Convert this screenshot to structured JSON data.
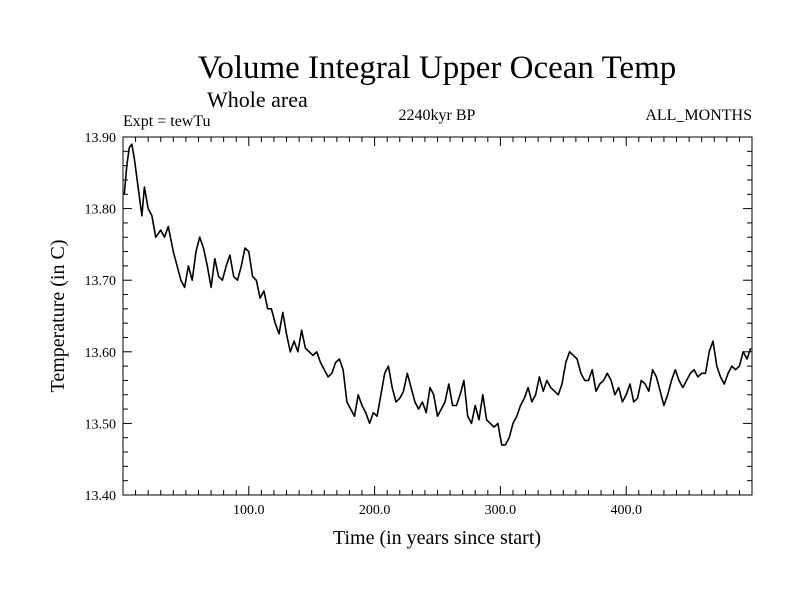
{
  "chart_data": {
    "type": "line",
    "title": "Volume Integral Upper Ocean Temp",
    "subtitle": "Whole area",
    "expt_label": "Expt = tewTu",
    "period_label": "2240kyr BP",
    "months_label": "ALL_MONTHS",
    "xlabel": "Time (in years since start)",
    "ylabel": "Temperature (in C)",
    "xlim": [
      0,
      500
    ],
    "ylim": [
      13.4,
      13.9
    ],
    "grid": false,
    "x_ticks": [
      100,
      200,
      300,
      400
    ],
    "x_tick_labels": [
      "100.0",
      "200.0",
      "300.0",
      "400.0"
    ],
    "y_ticks": [
      13.4,
      13.5,
      13.6,
      13.7,
      13.8,
      13.9
    ],
    "y_tick_labels": [
      "13.40",
      "13.50",
      "13.60",
      "13.70",
      "13.80",
      "13.90"
    ],
    "series": [
      {
        "name": "Volume integral upper ocean temperature",
        "x": [
          1,
          3,
          5,
          7,
          9,
          12,
          15,
          17,
          20,
          23,
          26,
          30,
          33,
          36,
          40,
          43,
          46,
          49,
          52,
          55,
          58,
          61,
          64,
          67,
          70,
          73,
          76,
          79,
          82,
          85,
          88,
          91,
          94,
          97,
          100,
          103,
          106,
          109,
          112,
          115,
          118,
          121,
          124,
          127,
          130,
          133,
          136,
          139,
          142,
          145,
          148,
          151,
          154,
          157,
          160,
          163,
          166,
          169,
          172,
          175,
          178,
          181,
          184,
          187,
          190,
          193,
          196,
          199,
          202,
          205,
          208,
          211,
          214,
          217,
          220,
          223,
          226,
          229,
          232,
          235,
          238,
          241,
          244,
          247,
          250,
          253,
          256,
          259,
          262,
          265,
          268,
          271,
          274,
          277,
          280,
          283,
          286,
          289,
          292,
          295,
          298,
          301,
          304,
          307,
          310,
          313,
          316,
          319,
          322,
          325,
          328,
          331,
          334,
          337,
          340,
          343,
          346,
          349,
          352,
          355,
          358,
          361,
          364,
          367,
          370,
          373,
          376,
          379,
          382,
          385,
          388,
          391,
          394,
          397,
          400,
          403,
          406,
          409,
          412,
          415,
          418,
          421,
          424,
          427,
          430,
          433,
          436,
          439,
          442,
          445,
          448,
          451,
          454,
          457,
          460,
          463,
          466,
          469,
          472,
          475,
          478,
          481,
          484,
          487,
          490,
          493,
          496,
          499
        ],
        "values": [
          13.82,
          13.86,
          13.885,
          13.89,
          13.87,
          13.83,
          13.79,
          13.83,
          13.8,
          13.79,
          13.76,
          13.77,
          13.76,
          13.775,
          13.74,
          13.72,
          13.7,
          13.69,
          13.72,
          13.7,
          13.74,
          13.76,
          13.745,
          13.72,
          13.69,
          13.73,
          13.705,
          13.7,
          13.72,
          13.735,
          13.705,
          13.7,
          13.72,
          13.745,
          13.74,
          13.705,
          13.7,
          13.675,
          13.685,
          13.66,
          13.66,
          13.64,
          13.625,
          13.655,
          13.625,
          13.6,
          13.615,
          13.6,
          13.63,
          13.605,
          13.6,
          13.595,
          13.6,
          13.585,
          13.575,
          13.565,
          13.57,
          13.585,
          13.59,
          13.575,
          13.53,
          13.52,
          13.51,
          13.54,
          13.525,
          13.515,
          13.5,
          13.515,
          13.51,
          13.54,
          13.57,
          13.58,
          13.55,
          13.53,
          13.535,
          13.545,
          13.57,
          13.55,
          13.53,
          13.52,
          13.53,
          13.515,
          13.55,
          13.54,
          13.51,
          13.52,
          13.53,
          13.555,
          13.525,
          13.525,
          13.54,
          13.56,
          13.51,
          13.5,
          13.525,
          13.505,
          13.54,
          13.505,
          13.5,
          13.495,
          13.5,
          13.47,
          13.47,
          13.48,
          13.5,
          13.51,
          13.525,
          13.535,
          13.55,
          13.53,
          13.54,
          13.565,
          13.545,
          13.56,
          13.55,
          13.545,
          13.54,
          13.555,
          13.585,
          13.6,
          13.595,
          13.59,
          13.57,
          13.56,
          13.56,
          13.575,
          13.545,
          13.555,
          13.56,
          13.57,
          13.56,
          13.54,
          13.55,
          13.53,
          13.54,
          13.555,
          13.53,
          13.535,
          13.56,
          13.555,
          13.545,
          13.575,
          13.565,
          13.545,
          13.525,
          13.54,
          13.56,
          13.575,
          13.56,
          13.55,
          13.56,
          13.57,
          13.575,
          13.565,
          13.57,
          13.57,
          13.6,
          13.615,
          13.58,
          13.565,
          13.555,
          13.57,
          13.58,
          13.575,
          13.58,
          13.6,
          13.59,
          13.605
        ]
      }
    ]
  }
}
